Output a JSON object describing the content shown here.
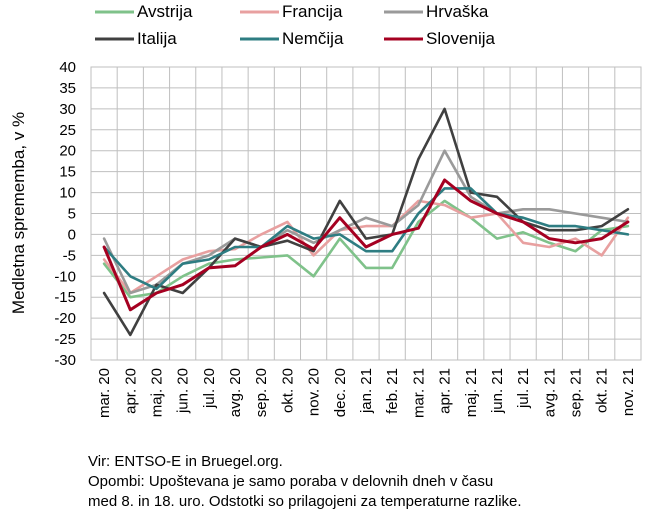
{
  "chart_data": {
    "type": "line",
    "ylabel": "Medletna sprememba, v %",
    "ylim": [
      -30,
      40
    ],
    "yticks": [
      -30,
      -25,
      -20,
      -15,
      -10,
      -5,
      0,
      5,
      10,
      15,
      20,
      25,
      30,
      35,
      40
    ],
    "grid": "horizontal and vertical",
    "legend_position": "top",
    "categories": [
      "mar. 20",
      "apr. 20",
      "maj. 20",
      "jun. 20",
      "jul. 20",
      "avg. 20",
      "sep. 20",
      "okt. 20",
      "nov. 20",
      "dec. 20",
      "jan. 21",
      "feb. 21",
      "mar. 21",
      "apr. 21",
      "maj. 21",
      "jun. 21",
      "jul. 21",
      "avg. 21",
      "sep. 21",
      "okt. 21",
      "nov. 21"
    ],
    "series": [
      {
        "name": "Avstrija",
        "color": "#7fc28a",
        "values": [
          -7,
          -15,
          -14,
          -10,
          -7,
          -6,
          -5.5,
          -5,
          -10,
          -1,
          -8,
          -8,
          3,
          8,
          4,
          -1,
          0.5,
          -2,
          -4,
          1,
          2
        ]
      },
      {
        "name": "Francija",
        "color": "#e8a0a0",
        "values": [
          -6,
          -14,
          -10,
          -6,
          -4,
          -3.5,
          0,
          3,
          -5,
          1,
          2,
          2,
          8,
          7,
          4,
          5,
          -2,
          -3,
          -1,
          -5,
          4
        ]
      },
      {
        "name": "Hrvaška",
        "color": "#9a9a9a",
        "values": [
          -1,
          -14,
          -12,
          -7,
          -5,
          -1,
          -3,
          1,
          -2,
          1,
          4,
          2,
          7,
          20,
          9,
          5,
          6,
          6,
          5,
          4,
          3
        ]
      },
      {
        "name": "Italija",
        "color": "#404040",
        "values": [
          -14,
          -24,
          -12,
          -14,
          -8,
          -1,
          -3,
          -1.5,
          -4,
          8,
          -1,
          0,
          18,
          30,
          10,
          9,
          3,
          1,
          1,
          2,
          6
        ]
      },
      {
        "name": "Nemčija",
        "color": "#2e7d82",
        "values": [
          -3,
          -10,
          -13,
          -7,
          -6,
          -3,
          -3,
          2,
          -1,
          0,
          -4,
          -4,
          5,
          11,
          11,
          5,
          4,
          2,
          2,
          1,
          0
        ]
      },
      {
        "name": "Slovenija",
        "color": "#a50021",
        "values": [
          -3,
          -18,
          -14,
          -12,
          -8,
          -7.5,
          -3,
          0,
          -3.5,
          4,
          -3,
          0,
          1.5,
          13,
          8,
          5,
          3,
          -1,
          -2,
          -1,
          3
        ]
      }
    ]
  },
  "notes": {
    "source": "Vir: ENTSO-E in Bruegel.org.",
    "note_line1": "Opombi: Upoštevana je samo poraba v delovnih dneh v času",
    "note_line2": "med 8. in 18. uro. Odstotki so prilagojeni za temperaturne razlike."
  }
}
